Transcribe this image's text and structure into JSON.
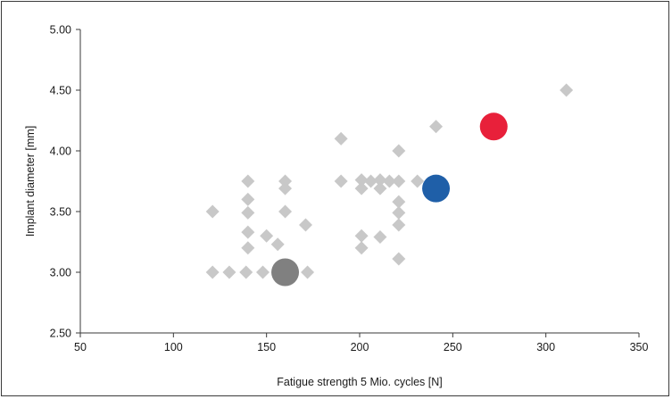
{
  "chart_data": {
    "type": "scatter",
    "xlabel": "Fatigue strength 5 Mio. cycles [N]",
    "ylabel": "Implant diameter [mm]",
    "xlim": [
      50,
      350
    ],
    "ylim": [
      2.5,
      5.0
    ],
    "x_ticks": [
      "50",
      "100",
      "150",
      "200",
      "250",
      "300",
      "350"
    ],
    "y_ticks": [
      "2.50",
      "3.00",
      "3.50",
      "4.00",
      "4.50",
      "5.00"
    ],
    "grid": false,
    "legend": "none",
    "colors": {
      "diamond": "#c8c8c8",
      "gray_circle": "#808080",
      "blue_circle": "#1f5fa8",
      "red_circle": "#e8203a",
      "axis": "#3a3a3a"
    },
    "series": [
      {
        "marker": "diamond",
        "points": [
          [
            121,
            3.0
          ],
          [
            130,
            3.0
          ],
          [
            139,
            3.0
          ],
          [
            148,
            3.0
          ],
          [
            172,
            3.0
          ],
          [
            121,
            3.5
          ],
          [
            140,
            3.75
          ],
          [
            140,
            3.6
          ],
          [
            140,
            3.49
          ],
          [
            140,
            3.33
          ],
          [
            140,
            3.2
          ],
          [
            150,
            3.3
          ],
          [
            156,
            3.23
          ],
          [
            160,
            3.75
          ],
          [
            160,
            3.69
          ],
          [
            160,
            3.5
          ],
          [
            171,
            3.39
          ],
          [
            190,
            4.1
          ],
          [
            190,
            3.75
          ],
          [
            201,
            3.76
          ],
          [
            201,
            3.69
          ],
          [
            201,
            3.3
          ],
          [
            201,
            3.2
          ],
          [
            206,
            3.75
          ],
          [
            211,
            3.76
          ],
          [
            211,
            3.69
          ],
          [
            211,
            3.29
          ],
          [
            216,
            3.75
          ],
          [
            221,
            4.0
          ],
          [
            221,
            3.75
          ],
          [
            221,
            3.58
          ],
          [
            221,
            3.49
          ],
          [
            221,
            3.39
          ],
          [
            221,
            3.11
          ],
          [
            231,
            3.75
          ],
          [
            241,
            4.2
          ],
          [
            311,
            4.5
          ]
        ]
      },
      {
        "marker": "circle",
        "color": "#808080",
        "points": [
          [
            160,
            3.0
          ]
        ]
      },
      {
        "marker": "circle",
        "color": "#1f5fa8",
        "points": [
          [
            241,
            3.69
          ]
        ]
      },
      {
        "marker": "circle",
        "color": "#e8203a",
        "points": [
          [
            272,
            4.2
          ]
        ]
      }
    ]
  }
}
